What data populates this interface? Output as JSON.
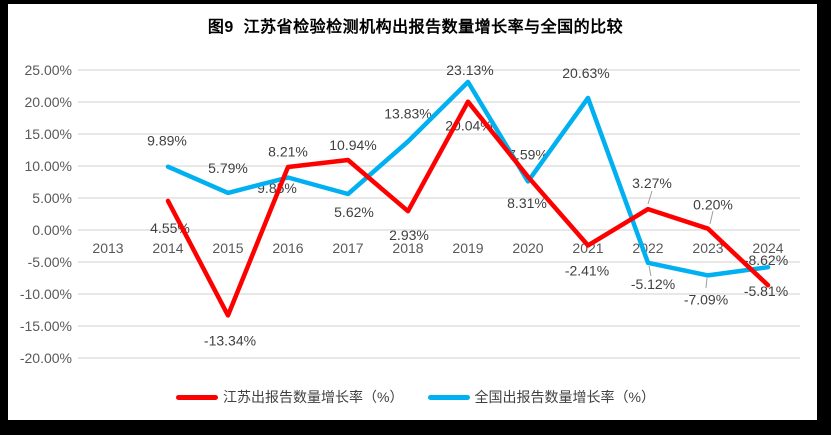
{
  "figure": {
    "title": "图9  江苏省检验检测机构出报告数量增长率与全国的比较"
  },
  "chart_data": {
    "type": "line",
    "title": "图9  江苏省检验检测机构出报告数量增长率与全国的比较",
    "categories": [
      "2013",
      "2014",
      "2015",
      "2016",
      "2017",
      "2018",
      "2019",
      "2020",
      "2021",
      "2022",
      "2023",
      "2024"
    ],
    "series": [
      {
        "name": "江苏出报告数量增长率（%）",
        "color": "#FF0000",
        "values": [
          null,
          4.55,
          -13.34,
          9.85,
          10.94,
          2.93,
          20.04,
          8.31,
          -2.41,
          3.27,
          0.2,
          -8.62
        ]
      },
      {
        "name": "全国出报告数量增长率（%）",
        "color": "#00B0F0",
        "values": [
          null,
          9.89,
          5.79,
          8.21,
          5.62,
          13.83,
          23.13,
          7.59,
          20.63,
          -5.12,
          -7.09,
          -5.81
        ]
      }
    ],
    "ylim": [
      -20,
      25
    ],
    "y_tick_step": 5,
    "y_tick_labels": [
      "25.00%",
      "20.00%",
      "15.00%",
      "10.00%",
      "5.00%",
      "0.00%",
      "-5.00%",
      "-10.00%",
      "-15.00%",
      "-20.00%"
    ],
    "y_tick_format": "0.00%",
    "grid": true,
    "data_labels": "every point, two decimals with % suffix",
    "legend_position": "bottom"
  },
  "style": {
    "background_color": "#FFFFFF",
    "frame_color": "#000000",
    "grid_color": "#D9D9D9",
    "axis_text_color": "#595959",
    "data_label_color": "#404040",
    "leader_line_color": "#9E9E9E",
    "title_color": "#000000",
    "legend_text_color": "#404040"
  }
}
